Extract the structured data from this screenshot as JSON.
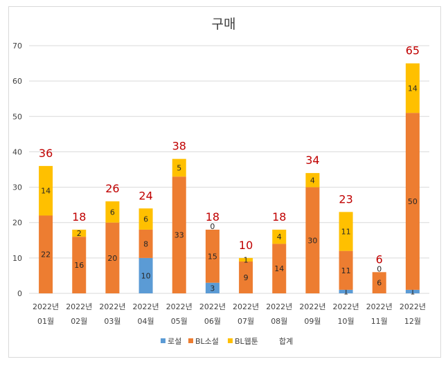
{
  "chart_data": {
    "type": "bar",
    "stacked": true,
    "title": "구매",
    "categories": [
      [
        "2022년",
        "01월"
      ],
      [
        "2022년",
        "02월"
      ],
      [
        "2022년",
        "03월"
      ],
      [
        "2022년",
        "04월"
      ],
      [
        "2022년",
        "05월"
      ],
      [
        "2022년",
        "06월"
      ],
      [
        "2022년",
        "07월"
      ],
      [
        "2022년",
        "08월"
      ],
      [
        "2022년",
        "09월"
      ],
      [
        "2022년",
        "10월"
      ],
      [
        "2022년",
        "11월"
      ],
      [
        "2022년",
        "12월"
      ]
    ],
    "series": [
      {
        "name": "로설",
        "color": "#5b9bd5",
        "values": [
          0,
          0,
          0,
          10,
          0,
          3,
          0,
          0,
          0,
          1,
          0,
          1
        ]
      },
      {
        "name": "BL소설",
        "color": "#ed7d31",
        "values": [
          22,
          16,
          20,
          8,
          33,
          15,
          9,
          14,
          30,
          11,
          6,
          50
        ]
      },
      {
        "name": "BL웹툰",
        "color": "#ffc000",
        "values": [
          14,
          2,
          6,
          6,
          5,
          0,
          1,
          4,
          4,
          11,
          0,
          14
        ]
      }
    ],
    "totals": {
      "name": "합계",
      "values": [
        36,
        18,
        26,
        24,
        38,
        18,
        10,
        18,
        34,
        23,
        6,
        65
      ]
    },
    "ylim": [
      0,
      70
    ],
    "yticks": [
      0,
      10,
      20,
      30,
      40,
      50,
      60,
      70
    ],
    "grid": true,
    "legend": "bottom"
  }
}
